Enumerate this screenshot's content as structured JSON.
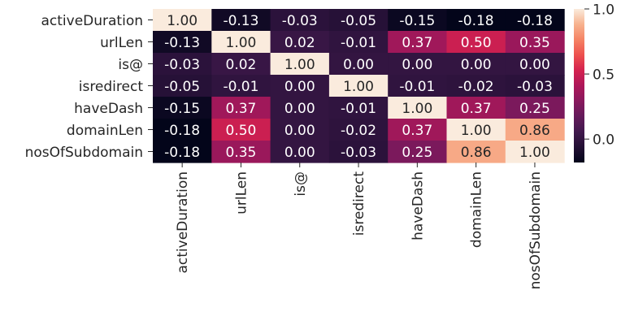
{
  "chart_data": {
    "type": "heatmap",
    "title": "",
    "xlabel": "",
    "ylabel": "",
    "x_categories": [
      "activeDuration",
      "urlLen",
      "is@",
      "isredirect",
      "haveDash",
      "domainLen",
      "nosOfSubdomain"
    ],
    "y_categories": [
      "activeDuration",
      "urlLen",
      "is@",
      "isredirect",
      "haveDash",
      "domainLen",
      "nosOfSubdomain"
    ],
    "values": [
      [
        1.0,
        -0.13,
        -0.03,
        -0.05,
        -0.15,
        -0.18,
        -0.18
      ],
      [
        -0.13,
        1.0,
        0.02,
        -0.01,
        0.37,
        0.5,
        0.35
      ],
      [
        -0.03,
        0.02,
        1.0,
        -0.0,
        0.0,
        -0.0,
        -0.0
      ],
      [
        -0.05,
        -0.01,
        -0.0,
        1.0,
        -0.01,
        -0.02,
        -0.03
      ],
      [
        -0.15,
        0.37,
        0.0,
        -0.01,
        1.0,
        0.37,
        0.25
      ],
      [
        -0.18,
        0.5,
        -0.0,
        -0.02,
        0.37,
        1.0,
        0.86
      ],
      [
        -0.18,
        0.35,
        -0.0,
        -0.03,
        0.25,
        0.86,
        1.0
      ]
    ],
    "annotation_format": "0.00",
    "colormap": "rocket",
    "vmin": -0.18,
    "vmax": 1.0,
    "colorbar": {
      "ticks": [
        0.0,
        0.5,
        1.0
      ],
      "tick_labels": [
        "0.0",
        "0.5",
        "1.0"
      ]
    }
  }
}
